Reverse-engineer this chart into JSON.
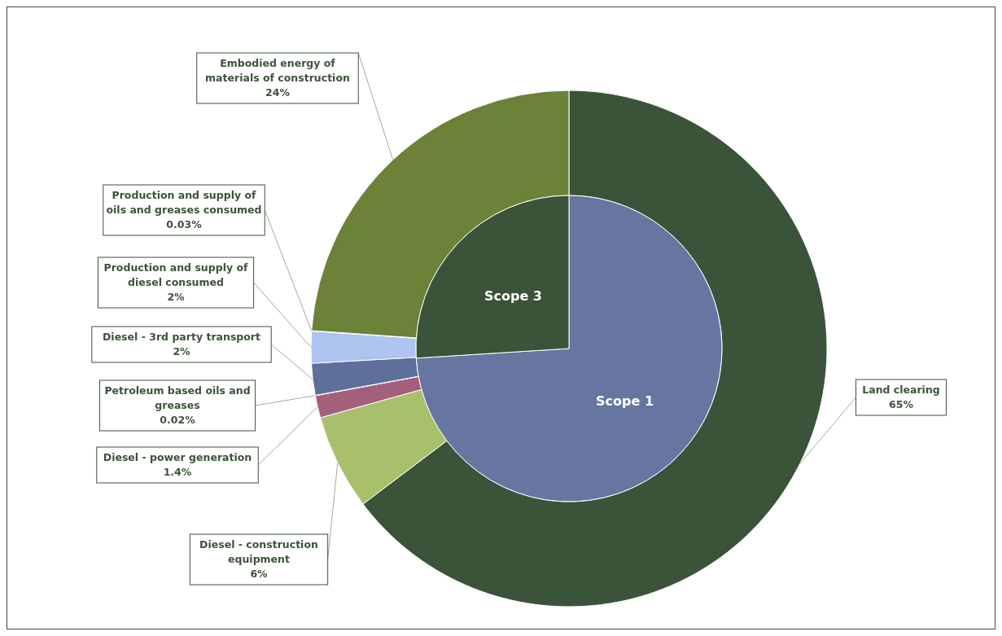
{
  "chart_data": [
    {
      "type": "donut",
      "categories": [
        "Land clearing",
        "Diesel - construction equipment",
        "Diesel - power generation",
        "Petroleum based oils and greases",
        "Diesel - 3rd party transport",
        "Production and supply of diesel consumed",
        "Production and supply of oils and greases consumed",
        "Embodied energy of materials of construction"
      ],
      "values": [
        65,
        6,
        1.4,
        0.02,
        2,
        2,
        0.03,
        24
      ],
      "value_labels": [
        "65%",
        "6%",
        "1.4%",
        "0.02%",
        "2%",
        "2%",
        "0.03%",
        "24%"
      ],
      "colors": [
        "#3b5338",
        "#a8c06c",
        "#a4607a",
        "#8a4a66",
        "#5e6f9c",
        "#adc3f0",
        "#c9d6f2",
        "#6b8238"
      ]
    },
    {
      "type": "pie",
      "categories": [
        "Scope 1",
        "Scope 3"
      ],
      "values": [
        74,
        26
      ],
      "colors": [
        "#6676a0",
        "#3b5338"
      ]
    }
  ]
}
